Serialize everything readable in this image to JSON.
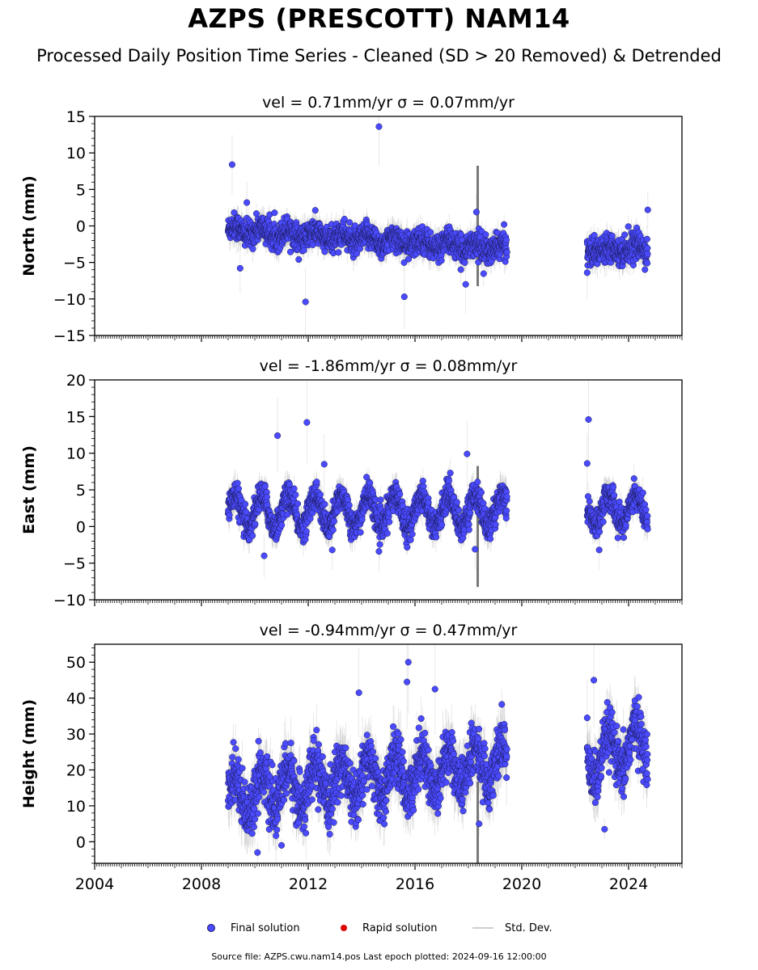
{
  "title": "AZPS (PRESCOTT) NAM14",
  "subtitle": "Processed Daily Position Time Series - Cleaned (SD > 20 Removed) & Detrended",
  "footer": "Source file: AZPS.cwu.nam14.pos  Last epoch plotted: 2024-09-16 12:00:00",
  "legend": {
    "final": "Final solution",
    "rapid": "Rapid solution",
    "std": "Std. Dev."
  },
  "colors": {
    "final_marker": "#4a4aff",
    "rapid_marker": "#e00000",
    "std_dev_line": "#b0b0b0"
  },
  "chart_data": [
    {
      "type": "scatter",
      "panel": "north",
      "title": "vel = 0.71mm/yr   σ = 0.07mm/yr",
      "ylabel": "North (mm)",
      "xlim": [
        2004.0,
        2026.0
      ],
      "ylim": [
        -15,
        15
      ],
      "yticks": [
        -15,
        -10,
        -5,
        0,
        5,
        10,
        15
      ],
      "ytick_labels": [
        "−15",
        "−10",
        "−5",
        "0",
        "5",
        "10",
        "15"
      ],
      "data_segments": [
        {
          "x_start": 2009.0,
          "x_end": 2019.45,
          "level_start": -0.5,
          "level_end": -3.2,
          "seasonal_amp": 0.6,
          "scatter": 1.1
        },
        {
          "x_start": 2022.45,
          "x_end": 2024.72,
          "level_start": -3.2,
          "level_end": -3.0,
          "seasonal_amp": 0.5,
          "scatter": 1.1
        }
      ],
      "outliers": [
        {
          "x": 2009.15,
          "y": 8.4
        },
        {
          "x": 2014.65,
          "y": 13.6
        },
        {
          "x": 2011.9,
          "y": -10.4
        },
        {
          "x": 2015.6,
          "y": -9.7
        },
        {
          "x": 2017.9,
          "y": -8.0
        },
        {
          "x": 2009.45,
          "y": -5.8
        },
        {
          "x": 2018.3,
          "y": 1.9
        },
        {
          "x": 2024.72,
          "y": 2.2
        },
        {
          "x": 2022.45,
          "y": -6.4
        },
        {
          "x": 2009.7,
          "y": 3.2
        }
      ]
    },
    {
      "type": "scatter",
      "panel": "east",
      "title": "vel = -1.86mm/yr   σ = 0.08mm/yr",
      "ylabel": "East (mm)",
      "xlim": [
        2004.0,
        2026.0
      ],
      "ylim": [
        -10,
        20
      ],
      "yticks": [
        -10,
        -5,
        0,
        5,
        10,
        15,
        20
      ],
      "ytick_labels": [
        "−10",
        "−5",
        "0",
        "5",
        "10",
        "15",
        "20"
      ],
      "data_segments": [
        {
          "x_start": 2009.0,
          "x_end": 2019.45,
          "level_start": 2.0,
          "level_end": 2.2,
          "seasonal_amp": 2.2,
          "scatter": 1.2
        },
        {
          "x_start": 2022.45,
          "x_end": 2024.72,
          "level_start": 2.2,
          "level_end": 2.5,
          "seasonal_amp": 2.0,
          "scatter": 1.2
        }
      ],
      "outliers": [
        {
          "x": 2010.85,
          "y": 12.4
        },
        {
          "x": 2011.95,
          "y": 14.2
        },
        {
          "x": 2022.5,
          "y": 14.6
        },
        {
          "x": 2017.95,
          "y": 9.9
        },
        {
          "x": 2022.45,
          "y": 8.6
        },
        {
          "x": 2010.35,
          "y": -4.0
        },
        {
          "x": 2014.65,
          "y": -3.4
        },
        {
          "x": 2012.9,
          "y": -3.2
        },
        {
          "x": 2018.25,
          "y": -3.1
        },
        {
          "x": 2022.9,
          "y": -3.2
        },
        {
          "x": 2012.6,
          "y": 8.5
        }
      ]
    },
    {
      "type": "scatter",
      "panel": "height",
      "title": "vel = -0.94mm/yr   σ = 0.47mm/yr",
      "ylabel": "Height (mm)",
      "xlim": [
        2004.0,
        2026.0
      ],
      "ylim": [
        -6,
        55
      ],
      "yticks": [
        0,
        10,
        20,
        30,
        40,
        50
      ],
      "ytick_labels": [
        "0",
        "10",
        "20",
        "30",
        "40",
        "50"
      ],
      "data_segments": [
        {
          "x_start": 2009.0,
          "x_end": 2019.45,
          "level_start": 13.0,
          "level_end": 22.0,
          "seasonal_amp": 5.5,
          "scatter": 4.5
        },
        {
          "x_start": 2022.45,
          "x_end": 2024.72,
          "level_start": 22.0,
          "level_end": 28.0,
          "seasonal_amp": 6.0,
          "scatter": 4.5
        }
      ],
      "outliers": [
        {
          "x": 2015.75,
          "y": 50.0
        },
        {
          "x": 2015.7,
          "y": 44.5
        },
        {
          "x": 2022.7,
          "y": 45.0
        },
        {
          "x": 2016.75,
          "y": 42.5
        },
        {
          "x": 2013.9,
          "y": 41.5
        },
        {
          "x": 2022.45,
          "y": 34.5
        },
        {
          "x": 2010.1,
          "y": -3.0
        },
        {
          "x": 2023.1,
          "y": 3.5
        },
        {
          "x": 2011.0,
          "y": -1.0
        },
        {
          "x": 2018.4,
          "y": 5.0
        }
      ]
    }
  ],
  "x_axis": {
    "ticks": [
      2004,
      2008,
      2012,
      2016,
      2020,
      2024
    ],
    "tick_labels": [
      "2004",
      "2008",
      "2012",
      "2016",
      "2020",
      "2024"
    ]
  }
}
